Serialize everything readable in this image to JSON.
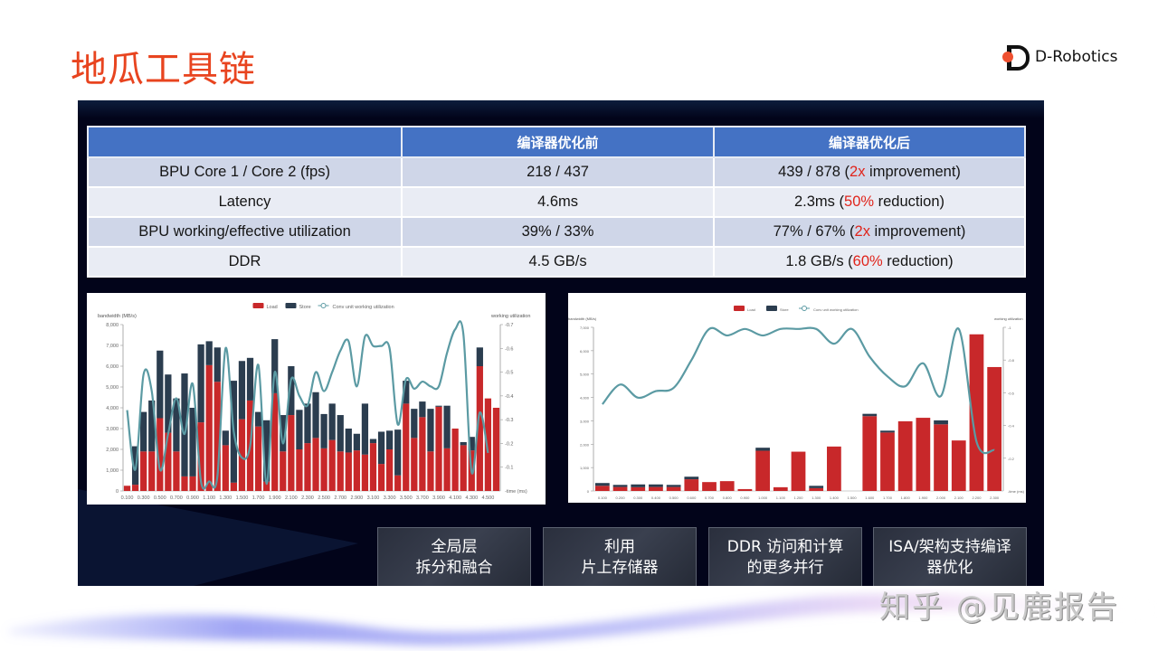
{
  "slide": {
    "title": "地瓜工具链",
    "logo_text": "D-Robotics",
    "brand_color": "#ef5030",
    "title_color": "#e8441f"
  },
  "table": {
    "headers": [
      "",
      "编译器优化前",
      "编译器优化后"
    ],
    "rows": [
      {
        "metric": "BPU Core 1 / Core 2 (fps)",
        "before": "218 / 437",
        "after_pre": "439 / 878 (",
        "after_hl": "2x",
        "after_post": " improvement)"
      },
      {
        "metric": "Latency",
        "before": "4.6ms",
        "after_pre": "2.3ms (",
        "after_hl": "50%",
        "after_post": " reduction)"
      },
      {
        "metric": "BPU working/effective utilization",
        "before": "39% / 33%",
        "after_pre": "77% / 67% (",
        "after_hl": "2x",
        "after_post": " improvement)"
      },
      {
        "metric": "DDR",
        "before": "4.5 GB/s",
        "after_pre": "1.8 GB/s (",
        "after_hl": "60%",
        "after_post": " reduction)"
      }
    ],
    "header_color": "#4472c4",
    "highlight_color": "#e0241b"
  },
  "features": [
    {
      "line1": "全局层",
      "line2": "拆分和融合"
    },
    {
      "line1": "利用",
      "line2": "片上存储器"
    },
    {
      "line1": "DDR 访问和计算",
      "line2": "的更多并行"
    },
    {
      "line1": "ISA/架构支持编译",
      "line2": "器优化"
    }
  ],
  "watermark": "知乎 @见鹿报告",
  "chart_data": [
    {
      "type": "bar",
      "title": "Before compiler optimization",
      "legend": [
        "Load",
        "Store",
        "Conv unit working utilization"
      ],
      "ylabel": "bandwidth (MB/s)",
      "y2label": "working utilization",
      "xlabel": "time (ms)",
      "ylim": [
        0,
        8000
      ],
      "y2lim": [
        0,
        0.7
      ],
      "yticks": [
        "0",
        "1,000",
        "2,000",
        "3,000",
        "4,000",
        "5,000",
        "6,000",
        "7,000",
        "8,000"
      ],
      "y2ticks": [
        "0.1",
        "0.2",
        "0.3",
        "0.4",
        "0.5",
        "0.6",
        "0.7"
      ],
      "xticks": [
        "0.100",
        "0.300",
        "0.500",
        "0.700",
        "0.900",
        "1.100",
        "1.300",
        "1.500",
        "1.700",
        "1.900",
        "2.100",
        "2.300",
        "2.500",
        "2.700",
        "2.900",
        "3.100",
        "3.300",
        "3.500",
        "3.700",
        "3.900",
        "4.100",
        "4.300",
        "4.500"
      ],
      "colors": {
        "load": "#c8282a",
        "store": "#2b3d4f",
        "line": "#5b9aa3"
      },
      "series": [
        {
          "name": "Load",
          "values": [
            250,
            300,
            1900,
            1900,
            3500,
            2800,
            1900,
            700,
            700,
            3300,
            6050,
            5250,
            2200,
            400,
            3450,
            4350,
            3100,
            450,
            4700,
            1900,
            3650,
            2000,
            2300,
            2550,
            2050,
            2450,
            1900,
            1850,
            1950,
            1750,
            2300,
            1300,
            2000,
            750,
            4200,
            2550,
            3550,
            1900,
            4050,
            2050,
            3000,
            2200,
            1950,
            6000,
            4450,
            4000
          ]
        },
        {
          "name": "Store",
          "values": [
            0,
            1850,
            1900,
            2450,
            3250,
            2800,
            2550,
            4950,
            3300,
            3750,
            1150,
            1650,
            700,
            4900,
            2800,
            2050,
            700,
            2950,
            2600,
            1750,
            2350,
            1900,
            1900,
            2200,
            1650,
            1750,
            1750,
            1150,
            800,
            2450,
            200,
            1550,
            900,
            2200,
            1100,
            1400,
            750,
            2050,
            50,
            2050,
            0,
            150,
            650,
            900,
            0,
            0
          ]
        },
        {
          "name": "Conv unit working utilization",
          "values": [
            0.34,
            0.09,
            0.49,
            0.42,
            0.09,
            0.24,
            0.39,
            0.24,
            0.45,
            0.04,
            0.04,
            0.06,
            0.6,
            0.25,
            0.14,
            0.19,
            0.53,
            0.03,
            0.5,
            0.2,
            0.47,
            0.4,
            0.36,
            0.5,
            0.42,
            0.5,
            0.59,
            0.63,
            0.44,
            0.65,
            0.61,
            0.61,
            0.6,
            0.28,
            0.47,
            0.43,
            0.46,
            0.44,
            0.44,
            0.58,
            0.68,
            0.66,
            0.08,
            0.33,
            0.16,
            null
          ]
        }
      ]
    },
    {
      "type": "bar",
      "title": "After compiler optimization",
      "legend": [
        "Load",
        "Store",
        "Conv unit working utilization"
      ],
      "ylabel": "bandwidth (MB/s)",
      "y2label": "working utilization",
      "xlabel": "time (ms)",
      "ylim": [
        0,
        7000
      ],
      "y2lim": [
        0,
        1
      ],
      "yticks": [
        "0",
        "1,000",
        "2,000",
        "3,000",
        "4,000",
        "5,000",
        "6,000",
        "7,000"
      ],
      "y2ticks": [
        "0.2",
        "0.4",
        "0.6",
        "0.8",
        "1"
      ],
      "xticks": [
        "0.100",
        "0.200",
        "0.300",
        "0.400",
        "0.500",
        "0.600",
        "0.700",
        "0.800",
        "0.900",
        "1.000",
        "1.100",
        "1.200",
        "1.300",
        "1.400",
        "1.500",
        "1.600",
        "1.700",
        "1.800",
        "1.900",
        "2.000",
        "2.100",
        "2.200",
        "2.300"
      ],
      "colors": {
        "load": "#c8282a",
        "store": "#2b3d4f",
        "line": "#5b9aa3"
      },
      "series": [
        {
          "name": "Load",
          "values": [
            220,
            170,
            160,
            170,
            170,
            500,
            380,
            420,
            80,
            1720,
            160,
            1680,
            120,
            1900,
            0,
            3200,
            2500,
            2980,
            3130,
            2850,
            2160,
            6700,
            5300
          ]
        },
        {
          "name": "Store",
          "values": [
            120,
            90,
            120,
            110,
            90,
            110,
            0,
            0,
            0,
            130,
            0,
            0,
            100,
            0,
            0,
            100,
            80,
            0,
            0,
            170,
            0,
            0,
            0
          ]
        },
        {
          "name": "Conv unit working utilization",
          "values": [
            0.53,
            0.65,
            0.57,
            0.61,
            0.63,
            0.8,
            0.99,
            0.95,
            0.99,
            0.95,
            0.99,
            0.99,
            0.99,
            0.9,
            0.99,
            0.82,
            0.7,
            0.64,
            0.78,
            0.58,
            0.99,
            0.3,
            0.25
          ]
        }
      ]
    }
  ]
}
